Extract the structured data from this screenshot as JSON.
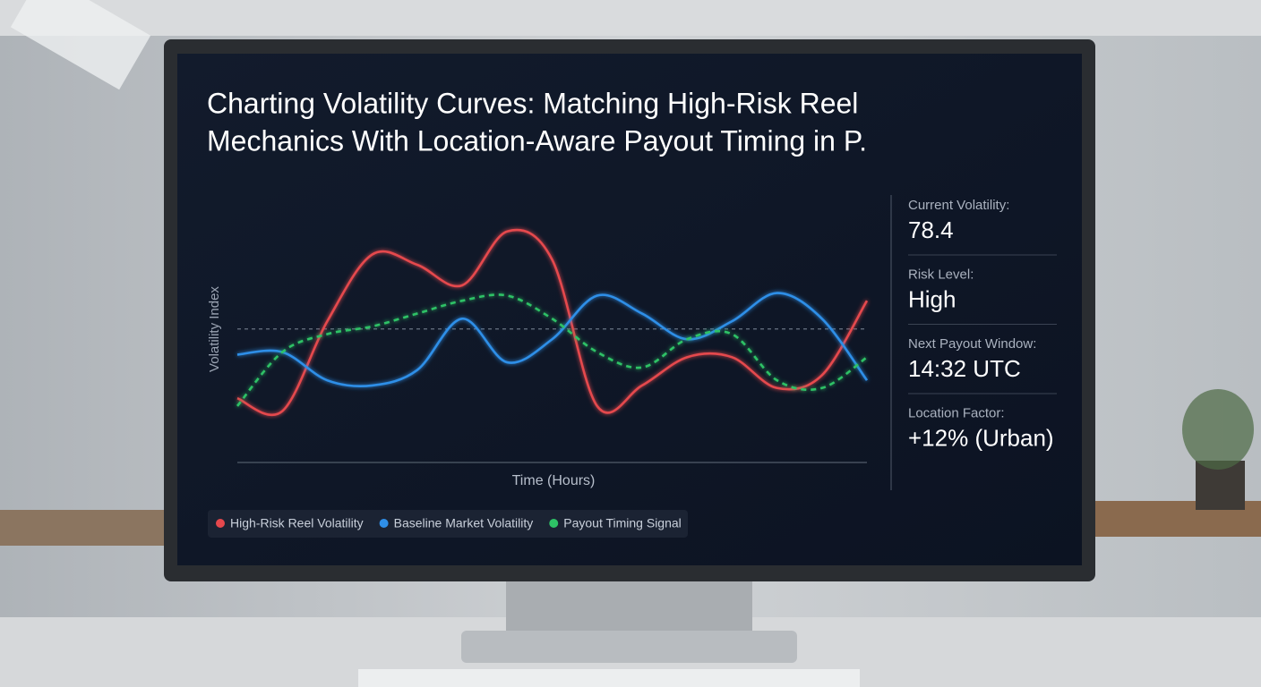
{
  "chart_data": {
    "type": "line",
    "title": [
      "Charting Volatility Curves: Matching High-Risk Reel",
      "Mechanics With Location-Aware Payout Timing in P."
    ],
    "y_label": "Volatility Index",
    "x_label": "Time (Hours)",
    "categories": [
      null,
      null,
      null,
      null,
      null,
      null,
      null,
      null,
      null,
      null,
      null,
      null,
      null,
      null,
      null
    ],
    "ylim": [
      0,
      100
    ],
    "reference_line": 52,
    "series": [
      {
        "name": "High-Risk Reel Volatility",
        "color": "#e5484d",
        "dashed": false,
        "values": [
          25,
          20,
          55,
          81,
          77,
          69,
          90,
          79,
          22,
          30,
          41,
          41,
          29,
          34,
          63
        ]
      },
      {
        "name": "Baseline Market Volatility",
        "color": "#2f8fe8",
        "dashed": false,
        "values": [
          42,
          43,
          32,
          30,
          36,
          56,
          39,
          48,
          65,
          58,
          48,
          55,
          66,
          56,
          32
        ]
      },
      {
        "name": "Payout Timing Signal",
        "color": "#2ec266",
        "dashed": true,
        "values": [
          22,
          43,
          50,
          53,
          58,
          63,
          65,
          56,
          43,
          37,
          48,
          50,
          32,
          29,
          41
        ]
      }
    ],
    "stats": [
      {
        "label": "Current Volatility:",
        "value": "78.4"
      },
      {
        "label": "Risk Level:",
        "value": "High"
      },
      {
        "label": "Next Payout Window:",
        "value": "14:32 UTC"
      },
      {
        "label": "Location Factor:",
        "value": "+12% (Urban)"
      }
    ]
  }
}
